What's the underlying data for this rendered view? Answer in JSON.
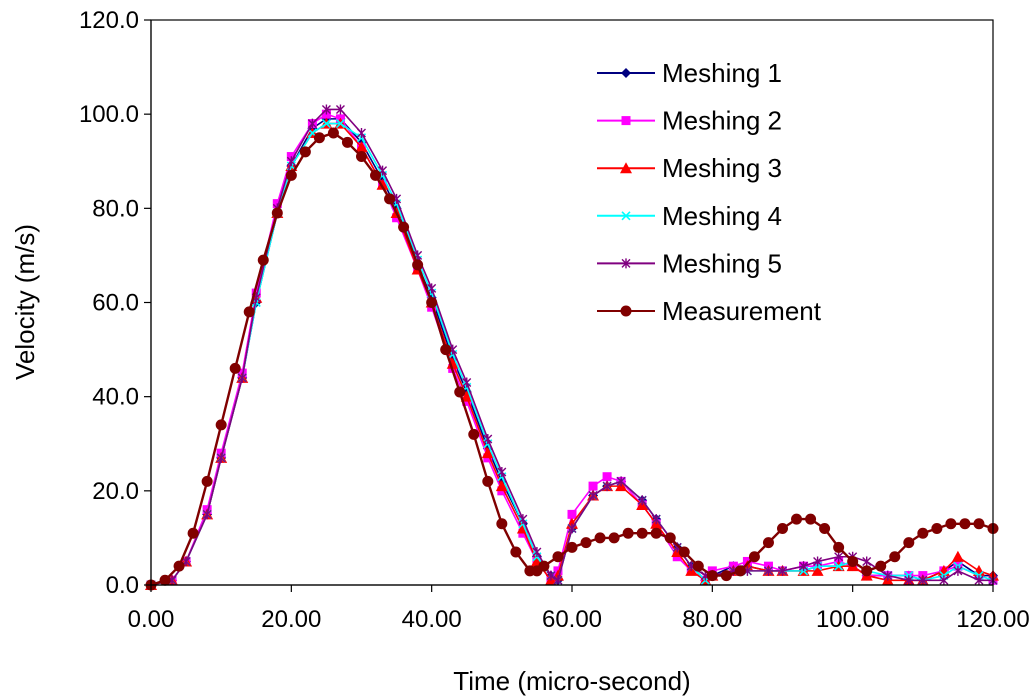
{
  "chart_data": {
    "type": "line",
    "title": "",
    "xlabel": "Time (micro-second)",
    "ylabel": "Velocity (m/s)",
    "xlim": [
      0,
      120
    ],
    "ylim": [
      0,
      120
    ],
    "x_ticks": [
      "0.00",
      "20.00",
      "40.00",
      "60.00",
      "80.00",
      "100.00",
      "120.00"
    ],
    "y_ticks": [
      "0.0",
      "20.0",
      "40.0",
      "60.0",
      "80.0",
      "100.0",
      "120.0"
    ],
    "grid": false,
    "legend_position": "top-right",
    "series": [
      {
        "name": "Meshing 1",
        "color": "#000080",
        "marker": "diamond",
        "x": [
          0,
          3,
          5,
          8,
          10,
          13,
          15,
          18,
          20,
          23,
          25,
          27,
          30,
          33,
          35,
          38,
          40,
          43,
          45,
          48,
          50,
          53,
          55,
          57,
          58,
          60,
          63,
          65,
          67,
          70,
          72,
          75,
          77,
          79,
          80,
          83,
          85,
          88,
          90,
          93,
          95,
          98,
          100,
          102,
          105,
          108,
          110,
          113,
          115,
          118,
          120
        ],
        "values": [
          0,
          1,
          5,
          15,
          27,
          44,
          60,
          79,
          89,
          97,
          99,
          99,
          94,
          86,
          80,
          68,
          61,
          48,
          41,
          29,
          22,
          13,
          6,
          2,
          1,
          12,
          19,
          21,
          22,
          18,
          14,
          8,
          4,
          1,
          2,
          4,
          4,
          3,
          3,
          3,
          4,
          4,
          4,
          2,
          2,
          2,
          1,
          3,
          5,
          2,
          2
        ]
      },
      {
        "name": "Meshing 2",
        "color": "#FF00FF",
        "marker": "square",
        "x": [
          0,
          3,
          5,
          8,
          10,
          13,
          15,
          18,
          20,
          23,
          25,
          27,
          30,
          33,
          35,
          38,
          40,
          43,
          45,
          48,
          50,
          53,
          55,
          57,
          58,
          60,
          63,
          65,
          67,
          70,
          72,
          75,
          77,
          79,
          80,
          83,
          85,
          88,
          90,
          93,
          95,
          98,
          100,
          102,
          105,
          108,
          110,
          113,
          115,
          118,
          120
        ],
        "values": [
          0,
          1,
          5,
          16,
          28,
          45,
          62,
          81,
          91,
          98,
          100,
          99,
          93,
          85,
          78,
          67,
          59,
          46,
          39,
          27,
          20,
          11,
          5,
          1,
          3,
          15,
          21,
          23,
          22,
          17,
          13,
          6,
          3,
          1,
          3,
          4,
          5,
          4,
          3,
          4,
          4,
          5,
          4,
          2,
          2,
          2,
          2,
          3,
          4,
          2,
          1
        ]
      },
      {
        "name": "Meshing 3",
        "color": "#FF0000",
        "marker": "triangle",
        "x": [
          0,
          3,
          5,
          8,
          10,
          13,
          15,
          18,
          20,
          23,
          25,
          27,
          30,
          33,
          35,
          38,
          40,
          43,
          45,
          48,
          50,
          53,
          55,
          57,
          58,
          60,
          63,
          65,
          67,
          70,
          72,
          75,
          77,
          79,
          80,
          83,
          85,
          88,
          90,
          93,
          95,
          98,
          100,
          102,
          105,
          108,
          110,
          113,
          115,
          118,
          120
        ],
        "values": [
          0,
          1,
          5,
          15,
          27,
          44,
          61,
          79,
          89,
          96,
          98,
          98,
          93,
          85,
          79,
          67,
          60,
          47,
          40,
          28,
          21,
          12,
          5,
          1,
          2,
          13,
          19,
          21,
          21,
          17,
          13,
          7,
          3,
          1,
          2,
          3,
          4,
          3,
          3,
          3,
          3,
          4,
          4,
          2,
          1,
          1,
          1,
          3,
          6,
          3,
          2
        ]
      },
      {
        "name": "Meshing 4",
        "color": "#00FFFF",
        "marker": "x",
        "x": [
          0,
          3,
          5,
          8,
          10,
          13,
          15,
          18,
          20,
          23,
          25,
          27,
          30,
          33,
          35,
          38,
          40,
          43,
          45,
          48,
          50,
          53,
          55,
          57,
          58,
          60,
          63,
          65,
          67,
          70,
          72,
          75,
          77,
          79,
          80,
          83,
          85,
          88,
          90,
          93,
          95,
          98,
          100,
          102,
          105,
          108,
          110,
          113,
          115,
          118,
          120
        ],
        "values": [
          0,
          1,
          5,
          15,
          27,
          44,
          60,
          79,
          89,
          96,
          98,
          98,
          95,
          87,
          81,
          69,
          62,
          49,
          42,
          30,
          23,
          13,
          6,
          2,
          1,
          12,
          19,
          21,
          22,
          18,
          14,
          8,
          4,
          1,
          2,
          3,
          3,
          3,
          3,
          3,
          4,
          4,
          5,
          3,
          2,
          2,
          1,
          2,
          4,
          2,
          1
        ]
      },
      {
        "name": "Meshing 5",
        "color": "#800080",
        "marker": "star",
        "x": [
          0,
          3,
          5,
          8,
          10,
          13,
          15,
          18,
          20,
          23,
          25,
          27,
          30,
          33,
          35,
          38,
          40,
          43,
          45,
          48,
          50,
          53,
          55,
          57,
          58,
          60,
          63,
          65,
          67,
          70,
          72,
          75,
          77,
          79,
          80,
          83,
          85,
          88,
          90,
          93,
          95,
          98,
          100,
          102,
          105,
          108,
          110,
          113,
          115,
          118,
          120
        ],
        "values": [
          0,
          1,
          5,
          15,
          27,
          44,
          61,
          80,
          90,
          98,
          101,
          101,
          96,
          88,
          82,
          70,
          63,
          50,
          43,
          31,
          24,
          14,
          7,
          2,
          1,
          12,
          19,
          21,
          22,
          18,
          14,
          8,
          4,
          2,
          2,
          3,
          3,
          3,
          3,
          4,
          5,
          6,
          6,
          5,
          2,
          1,
          1,
          1,
          3,
          1,
          1
        ]
      },
      {
        "name": "Measurement",
        "color": "#800000",
        "marker": "circle",
        "x": [
          0,
          2,
          4,
          6,
          8,
          10,
          12,
          14,
          16,
          18,
          20,
          22,
          24,
          26,
          28,
          30,
          32,
          34,
          36,
          38,
          40,
          42,
          44,
          46,
          48,
          50,
          52,
          54,
          55,
          56,
          58,
          60,
          62,
          64,
          66,
          68,
          70,
          72,
          74,
          76,
          78,
          80,
          82,
          84,
          86,
          88,
          90,
          92,
          94,
          96,
          98,
          100,
          102,
          104,
          106,
          108,
          110,
          112,
          114,
          116,
          118,
          120
        ],
        "values": [
          0,
          1,
          4,
          11,
          22,
          34,
          46,
          58,
          69,
          79,
          87,
          92,
          95,
          96,
          94,
          91,
          87,
          82,
          76,
          68,
          60,
          50,
          41,
          32,
          22,
          13,
          7,
          3,
          3,
          4,
          6,
          8,
          9,
          10,
          10,
          11,
          11,
          11,
          10,
          7,
          4,
          2,
          2,
          3,
          6,
          9,
          12,
          14,
          14,
          12,
          8,
          5,
          3,
          4,
          6,
          9,
          11,
          12,
          13,
          13,
          13,
          12
        ]
      }
    ]
  }
}
